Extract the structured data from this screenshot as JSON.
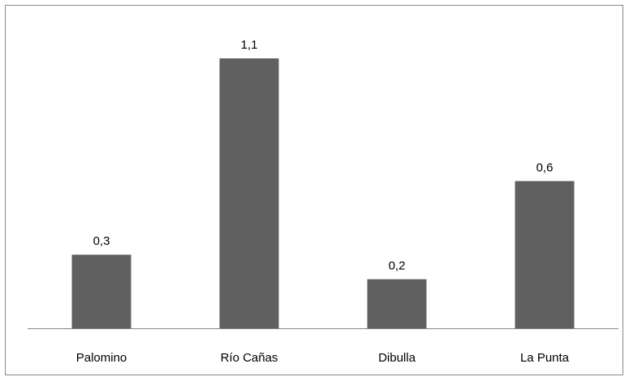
{
  "chart_data": {
    "type": "bar",
    "categories": [
      "Palomino",
      "Río Cañas",
      "Dibulla",
      "La Punta"
    ],
    "values": [
      0.3,
      1.1,
      0.2,
      0.6
    ],
    "value_labels": [
      "0,3",
      "1,1",
      "0,2",
      "0,6"
    ],
    "ylim": [
      0,
      1.2
    ],
    "grid": false,
    "legend": "none",
    "bar_color": "#606060",
    "axis_color": "#868686"
  }
}
